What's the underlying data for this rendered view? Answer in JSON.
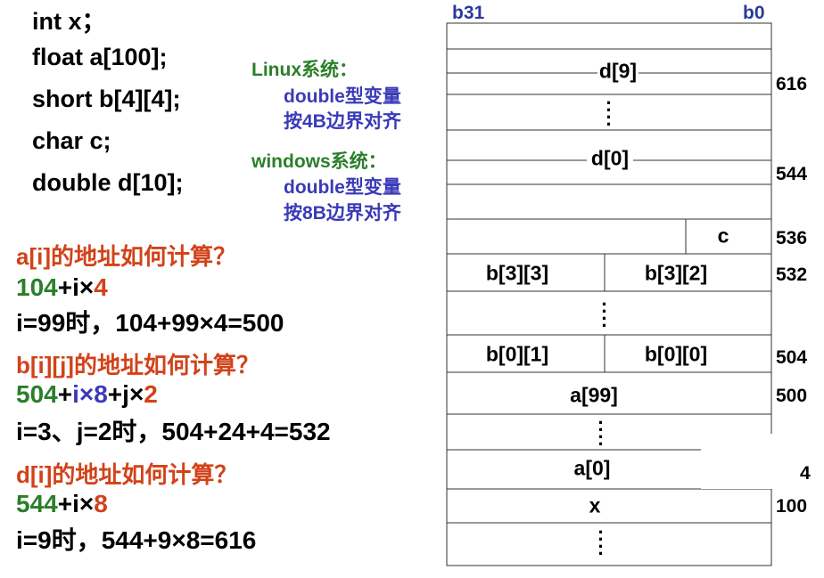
{
  "code": {
    "lines": [
      "int x；",
      "float a[100];",
      "short b[4][4];",
      "char c;",
      "double d[10];"
    ]
  },
  "notes": {
    "linux": {
      "title": "Linux系统：",
      "line1": "double型变量",
      "line2": "按4B边界对齐"
    },
    "windows": {
      "title": "windows系统：",
      "line1": "double型变量",
      "line2": "按8B边界对齐"
    }
  },
  "questions": {
    "a": {
      "question": "a[i]的地址如何计算？",
      "formula": {
        "base": "104",
        "plus": "+",
        "i": "i",
        "times": "×",
        "size": "4"
      },
      "example": "i=99时，104+99×4=500"
    },
    "b": {
      "question": "b[i][j]的地址如何计算？",
      "formula": {
        "base": "504",
        "plus1": "+",
        "i": "i",
        "times1": "×",
        "row": "8",
        "plus2": "+",
        "j": "j",
        "times2": "×",
        "col": "2"
      },
      "example": "i=3、j=2时，504+24+4=532"
    },
    "d": {
      "question": "d[i]的地址如何计算？",
      "formula": {
        "base": "544",
        "plus": "+",
        "i": "i",
        "times": "×",
        "size": "8"
      },
      "example": "i=9时，544+9×8=616"
    }
  },
  "memory": {
    "bit_high": "b31",
    "bit_low": "b0",
    "cells": {
      "d9": "d[9]",
      "d0": "d[0]",
      "c": "c",
      "b33": "b[3][3]",
      "b32": "b[3][2]",
      "b01": "b[0][1]",
      "b00": "b[0][0]",
      "a99": "a[99]",
      "a0": "a[0]",
      "x": "x"
    },
    "addresses": {
      "a616": "616",
      "a544": "544",
      "a536": "536",
      "a532": "532",
      "a504": "504",
      "a500": "500",
      "a4": "4",
      "a100": "100"
    }
  },
  "colors": {
    "green": "#2a7f2a",
    "blue": "#3a3ab8",
    "red": "#d2421a",
    "bitlabel": "#2a3a9a"
  }
}
